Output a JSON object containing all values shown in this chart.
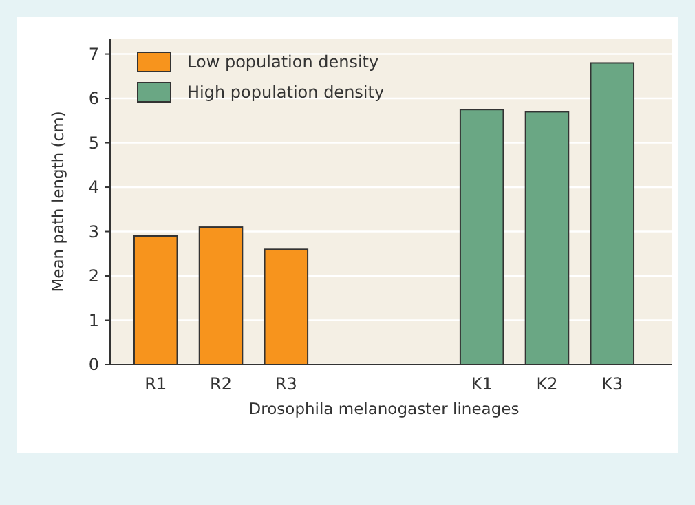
{
  "chart_data": {
    "type": "bar",
    "xlabel": "Drosophila melanogaster lineages",
    "ylabel": "Mean path length (cm)",
    "categories": [
      "R1",
      "R2",
      "R3",
      null,
      null,
      "K1",
      "K2",
      "K3"
    ],
    "series": [
      {
        "name": "Low population density",
        "color": "#f7941d",
        "values": [
          2.9,
          3.1,
          2.6,
          null,
          null,
          null,
          null,
          null
        ]
      },
      {
        "name": "High population density",
        "color": "#6aa784",
        "values": [
          null,
          null,
          null,
          null,
          null,
          5.75,
          5.7,
          6.8
        ]
      }
    ],
    "ylim": [
      0,
      7.35
    ],
    "yticks": [
      0,
      1,
      2,
      3,
      4,
      5,
      6,
      7
    ],
    "grid": "y",
    "legend": "top left"
  }
}
